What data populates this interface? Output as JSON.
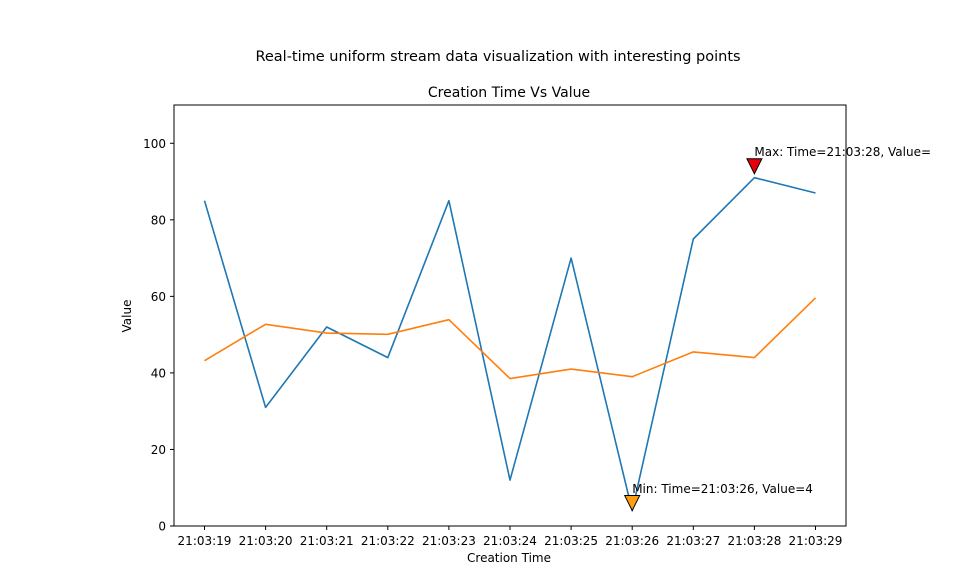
{
  "figure_title": "Real-time uniform stream data visualization with interesting points",
  "chart_data": {
    "type": "line",
    "title": "Creation Time Vs Value",
    "xlabel": "Creation Time",
    "ylabel": "Value",
    "categories": [
      "21:03:19",
      "21:03:20",
      "21:03:21",
      "21:03:22",
      "21:03:23",
      "21:03:24",
      "21:03:25",
      "21:03:26",
      "21:03:27",
      "21:03:28",
      "21:03:29"
    ],
    "ylim": [
      0,
      110
    ],
    "yticks": [
      0,
      20,
      40,
      60,
      80,
      100
    ],
    "grid": false,
    "series": [
      {
        "color": "#1f77b4",
        "values": [
          85,
          31,
          52,
          44,
          85,
          12,
          70,
          4,
          75,
          91,
          87
        ]
      },
      {
        "color": "#ff7f0e",
        "values": [
          43.2,
          52.7,
          50.4,
          50.1,
          53.9,
          38.5,
          41,
          39,
          45.5,
          44,
          59.6
        ]
      }
    ],
    "annotations": [
      {
        "label": "Max: Time=21:03:28, Value=",
        "x_index": 9,
        "value": 94,
        "marker": "down-triangle",
        "color": "#e8000b"
      },
      {
        "label": "Min: Time=21:03:26, Value=4",
        "x_index": 7,
        "value": 6,
        "marker": "down-triangle",
        "color": "#ff9f10"
      }
    ]
  }
}
